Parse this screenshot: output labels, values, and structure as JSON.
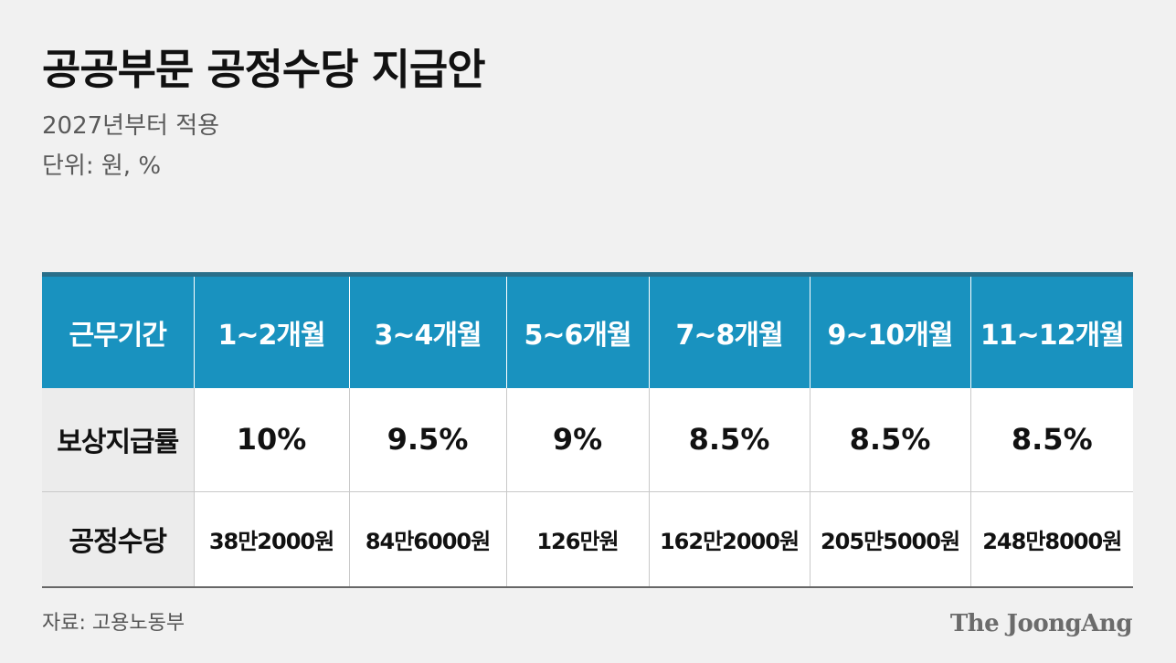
{
  "title": "공공부문 공정수당 지급안",
  "subtitle_lines": [
    "2027년부터 적용",
    "단위: 원, %"
  ],
  "table": {
    "header_label": "근무기간",
    "columns": [
      "1~2개월",
      "3~4개월",
      "5~6개월",
      "7~8개월",
      "9~10개월",
      "11~12개월"
    ],
    "rows": [
      {
        "label": "보상지급률",
        "values": [
          "10%",
          "9.5%",
          "9%",
          "8.5%",
          "8.5%",
          "8.5%"
        ]
      },
      {
        "label": "공정수당",
        "values": [
          "38만2000원",
          "84만6000원",
          "126만원",
          "162만2000원",
          "205만5000원",
          "248만8000원"
        ]
      }
    ]
  },
  "source": "자료: 고용노동부",
  "logo": "The JoongAng",
  "colors": {
    "header_bg": "#1992bf",
    "header_text": "#ffffff",
    "background": "#f1f1f1"
  }
}
